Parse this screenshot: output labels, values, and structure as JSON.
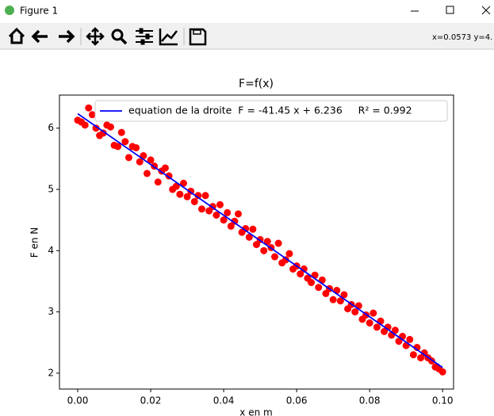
{
  "window": {
    "title": "Figure 1",
    "status": "x=0.0573 y=4."
  },
  "chart_data": {
    "type": "scatter",
    "title": "F=f(x)",
    "x_label": "x en m",
    "y_label": "F en N",
    "xlim": [
      -0.005,
      0.103
    ],
    "ylim": [
      1.74,
      6.54
    ],
    "xticks": [
      {
        "value": 0,
        "label": "0.00"
      },
      {
        "value": 0.02,
        "label": "0.02"
      },
      {
        "value": 0.04,
        "label": "0.04"
      },
      {
        "value": 0.06,
        "label": "0.06"
      },
      {
        "value": 0.08,
        "label": "0.08"
      },
      {
        "value": 0.1,
        "label": "0.10"
      }
    ],
    "yticks": [
      2,
      3,
      4,
      5,
      6
    ],
    "legend": "upper right",
    "series": [
      {
        "type": "scatter",
        "color": "#ff0000",
        "x": [
          0,
          0.001,
          0.002,
          0.003,
          0.004,
          0.005,
          0.006,
          0.007,
          0.008,
          0.009,
          0.01,
          0.011,
          0.012,
          0.013,
          0.014,
          0.015,
          0.016,
          0.017,
          0.018,
          0.019,
          0.02,
          0.021,
          0.022,
          0.023,
          0.024,
          0.025,
          0.026,
          0.027,
          0.028,
          0.029,
          0.03,
          0.031,
          0.032,
          0.033,
          0.034,
          0.035,
          0.036,
          0.037,
          0.038,
          0.039,
          0.04,
          0.041,
          0.042,
          0.043,
          0.044,
          0.045,
          0.046,
          0.047,
          0.048,
          0.049,
          0.05,
          0.051,
          0.052,
          0.053,
          0.054,
          0.055,
          0.056,
          0.057,
          0.058,
          0.059,
          0.06,
          0.061,
          0.062,
          0.063,
          0.064,
          0.065,
          0.066,
          0.067,
          0.068,
          0.069,
          0.07,
          0.071,
          0.072,
          0.073,
          0.074,
          0.075,
          0.076,
          0.077,
          0.078,
          0.079,
          0.08,
          0.081,
          0.082,
          0.083,
          0.084,
          0.085,
          0.086,
          0.087,
          0.088,
          0.089,
          0.09,
          0.091,
          0.092,
          0.093,
          0.094,
          0.095,
          0.096,
          0.097,
          0.098,
          0.099,
          0.1
        ],
        "values": [
          6.13,
          6.1,
          6.05,
          6.33,
          6.22,
          6.0,
          5.88,
          5.92,
          6.05,
          6.02,
          5.72,
          5.7,
          5.93,
          5.78,
          5.52,
          5.7,
          5.68,
          5.45,
          5.55,
          5.26,
          5.48,
          5.38,
          5.12,
          5.3,
          5.35,
          5.22,
          5.0,
          5.05,
          4.92,
          5.1,
          4.88,
          4.97,
          4.8,
          4.9,
          4.68,
          4.9,
          4.65,
          4.72,
          4.58,
          4.75,
          4.5,
          4.62,
          4.4,
          4.48,
          4.6,
          4.3,
          4.36,
          4.22,
          4.35,
          4.1,
          4.18,
          4.0,
          4.15,
          4.05,
          3.9,
          4.12,
          3.8,
          3.85,
          3.95,
          3.7,
          3.75,
          3.62,
          3.7,
          3.55,
          3.48,
          3.6,
          3.4,
          3.52,
          3.3,
          3.38,
          3.2,
          3.35,
          3.18,
          3.28,
          3.05,
          3.12,
          3.0,
          3.1,
          2.88,
          2.95,
          2.82,
          2.98,
          2.75,
          2.85,
          2.68,
          2.75,
          2.62,
          2.7,
          2.52,
          2.6,
          2.45,
          2.55,
          2.3,
          2.42,
          2.25,
          2.33,
          2.25,
          2.2,
          2.1,
          2.07,
          2.02
        ]
      },
      {
        "type": "line",
        "name": "equation de la droite  F = -41.45 x + 6.236     R² = 0.992",
        "color": "#0000ff",
        "x": [
          0,
          0.1
        ],
        "values": [
          6.236,
          2.091
        ]
      }
    ]
  }
}
